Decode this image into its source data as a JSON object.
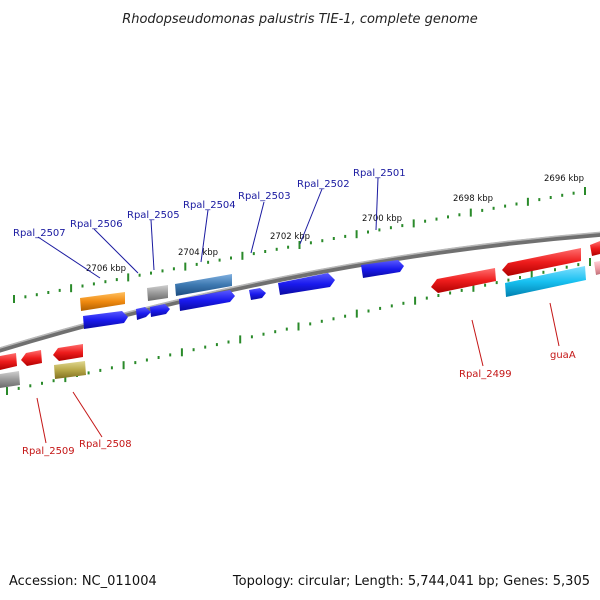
{
  "title": "Rhodopseudomonas palustris TIE-1, complete genome",
  "accession": "Accession: NC_011004",
  "summary": "Topology: circular; Length: 5,744,041 bp; Genes: 5,305",
  "colors": {
    "backbone": "#8a8a8a",
    "tick": "#2a8a2a",
    "red": "#ee1c1c",
    "blue": "#1a1aee",
    "orange": "#f08a10",
    "gray": "#9a9a9a",
    "steel": "#3c78b0",
    "cyan": "#18c0f0",
    "olive": "#b8a848",
    "pink": "#f0a0a8"
  },
  "ticks_outer": [
    "2696 kbp",
    "2698 kbp",
    "2700 kbp",
    "2702 kbp",
    "2704 kbp",
    "2706 kbp"
  ],
  "genes": {
    "top": [
      {
        "name": "Rpal_2501",
        "color": "blue"
      },
      {
        "name": "Rpal_2502",
        "color": "blue"
      },
      {
        "name": "Rpal_2503",
        "color": "blue"
      },
      {
        "name": "Rpal_2504",
        "color": "steel"
      },
      {
        "name": "Rpal_2505",
        "color": "gray"
      },
      {
        "name": "Rpal_2506",
        "color": "blue"
      },
      {
        "name": "Rpal_2507",
        "color": "orange"
      }
    ],
    "bottom": [
      {
        "name": "guaA",
        "color": "cyan"
      },
      {
        "name": "Rpal_2499",
        "color": "red"
      },
      {
        "name": "Rpal_2508",
        "color": "olive"
      },
      {
        "name": "Rpal_2509",
        "color": "red"
      }
    ]
  }
}
